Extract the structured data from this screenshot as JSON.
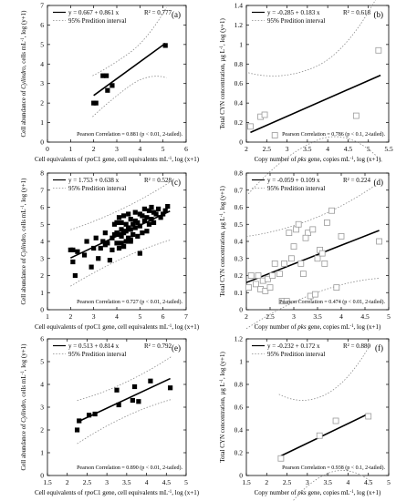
{
  "colors": {
    "axis": "#000000",
    "fit_line": "#000000",
    "interval": "#8a8a8a",
    "filled_marker": "#000000",
    "open_marker": "#9a9a9a"
  },
  "chart_data": [
    {
      "panel": "(a)",
      "type": "scatter",
      "marker": "filled-square",
      "xlabel_parts": [
        "Cell equivalents of ",
        "rpo",
        "C1 gene, cell equivalents mL",
        "-1",
        ", log (x+1)"
      ],
      "ylabel_parts": [
        "Cell abundance of ",
        "Cylindro",
        ", cells mL",
        "-1",
        ", log (y+1)"
      ],
      "xlim": [
        0,
        6
      ],
      "ylim": [
        0,
        7
      ],
      "xticks": [
        "0",
        "1",
        "2",
        "3",
        "4",
        "5",
        "6"
      ],
      "yticks": [
        "0",
        "1",
        "2",
        "3",
        "4",
        "5",
        "6",
        "7"
      ],
      "legend": {
        "equation": "y = 0.667 + 0.861 x",
        "r2": "R² = 0.777",
        "interval": "95% Predition interval"
      },
      "annotation": "Pearson Correlation = 0.881 (p < 0.01, 2-tailed).",
      "fit": {
        "intercept": 0.667,
        "slope": 0.861,
        "x_range": [
          2.0,
          5.1
        ]
      },
      "interval": {
        "x_range": [
          1.95,
          5.15
        ],
        "half_width": [
          1.05,
          0.85,
          1.8
        ]
      },
      "x": [
        2.0,
        2.1,
        2.4,
        2.55,
        2.6,
        2.8,
        5.1
      ],
      "y": [
        2.0,
        2.0,
        3.4,
        3.4,
        2.65,
        2.9,
        4.95
      ]
    },
    {
      "panel": "(b)",
      "type": "scatter",
      "marker": "open-square",
      "xlabel_parts": [
        "Copy number of ",
        "pks",
        " gene, copies mL",
        "-1",
        ", log (x+1)"
      ],
      "ylabel_parts": [
        "Total CYN concentration, µg L",
        "-1",
        ", log (y+1)"
      ],
      "xlim": [
        2,
        5.5
      ],
      "ylim": [
        0,
        1.4
      ],
      "xticks": [
        "2",
        "2.5",
        "3",
        "3.5",
        "4",
        "4.5",
        "5",
        "5.5"
      ],
      "yticks": [
        "0",
        "0.2",
        "0.4",
        "0.6",
        "0.8",
        "1",
        "1.2",
        "1.4"
      ],
      "legend": {
        "equation": "y = -0.285 + 0.183 x",
        "r2": "R² = 0.618",
        "interval": "95% Predition interval"
      },
      "annotation": "Pearson Correlation = 0.786 (p < 0.1, 2-tailed).",
      "fit": {
        "intercept": -0.285,
        "slope": 0.183,
        "x_range": [
          2.1,
          5.3
        ]
      },
      "interval": {
        "x_range": [
          2.05,
          5.35
        ],
        "half_width": [
          0.62,
          0.38,
          0.9
        ]
      },
      "x": [
        2.1,
        2.35,
        2.45,
        2.7,
        4.7,
        5.25
      ],
      "y": [
        0.16,
        0.26,
        0.28,
        0.07,
        0.27,
        0.94
      ]
    },
    {
      "panel": "(c)",
      "type": "scatter",
      "marker": "filled-square",
      "xlabel_parts": [
        "Cell equivalents of ",
        "rpo",
        "C1 gene, cell equivalents mL",
        "-1",
        ", log (x+1)"
      ],
      "ylabel_parts": [
        "Cell abundance of ",
        "Cylindro",
        ", cells mL",
        "-1",
        ", log (y+1)"
      ],
      "xlim": [
        1,
        7
      ],
      "ylim": [
        0,
        8
      ],
      "xticks": [
        "1",
        "2",
        "3",
        "4",
        "5",
        "6",
        "7"
      ],
      "yticks": [
        "0",
        "1",
        "2",
        "3",
        "4",
        "5",
        "6",
        "7",
        "8"
      ],
      "legend": {
        "equation": "y = 1.753 + 0.638 x",
        "r2": "R² = 0.528",
        "interval": "95% Predition interval"
      },
      "annotation": "Pearson Correlation = 0.727 (p < 0.01, 2-tailed).",
      "fit": {
        "intercept": 1.753,
        "slope": 0.638,
        "x_range": [
          2.0,
          6.3
        ]
      },
      "interval": {
        "x_range": [
          2.0,
          6.3
        ],
        "half_width": [
          1.65,
          1.45,
          1.7
        ]
      },
      "x": [
        2.0,
        2.1,
        2.1,
        2.2,
        2.6,
        2.7,
        2.9,
        3.0,
        3.1,
        3.2,
        3.3,
        3.4,
        3.5,
        3.6,
        3.7,
        3.8,
        3.9,
        3.9,
        4.0,
        4.0,
        4.0,
        4.1,
        4.1,
        4.1,
        4.2,
        4.2,
        4.2,
        4.3,
        4.3,
        4.3,
        4.4,
        4.4,
        4.4,
        4.5,
        4.5,
        4.5,
        4.6,
        4.6,
        4.6,
        4.7,
        4.7,
        4.8,
        4.8,
        4.8,
        4.9,
        4.9,
        5.0,
        5.0,
        5.0,
        5.1,
        5.1,
        5.2,
        5.2,
        5.3,
        5.3,
        5.4,
        5.4,
        5.5,
        5.5,
        5.6,
        5.6,
        5.7,
        5.8,
        5.9,
        6.0,
        6.1,
        6.2,
        2.3,
        3.5,
        3.8,
        4.2,
        4.6
      ],
      "y": [
        3.5,
        2.8,
        3.5,
        2.0,
        3.2,
        4.0,
        2.5,
        3.6,
        4.2,
        3.0,
        3.6,
        4.0,
        4.5,
        3.9,
        2.9,
        3.5,
        4.4,
        5.0,
        4.5,
        3.9,
        5.1,
        4.4,
        3.6,
        5.4,
        4.7,
        3.9,
        5.1,
        4.5,
        3.7,
        5.5,
        4.6,
        4.0,
        5.0,
        4.8,
        5.6,
        4.2,
        4.7,
        5.3,
        4.1,
        5.0,
        4.4,
        5.7,
        4.8,
        5.2,
        4.3,
        5.1,
        4.9,
        5.6,
        3.3,
        5.5,
        4.5,
        5.9,
        5.2,
        5.4,
        4.6,
        5.8,
        5.0,
        5.3,
        6.0,
        5.1,
        5.7,
        5.6,
        5.9,
        5.4,
        5.6,
        5.8,
        6.05,
        3.4,
        3.8,
        4.2,
        4.3,
        4.0
      ]
    },
    {
      "panel": "(d)",
      "type": "scatter",
      "marker": "open-square",
      "xlabel_parts": [
        "Copy number of ",
        "pks",
        " gene, copies mL",
        "-1",
        ", log (x+1)"
      ],
      "ylabel_parts": [
        "Total CYN concentration, µg L",
        "-1",
        ", log (y+1)"
      ],
      "xlim": [
        2,
        5
      ],
      "ylim": [
        0,
        0.8
      ],
      "xticks": [
        "2",
        "2.5",
        "3",
        "3.5",
        "4",
        "4.5",
        "5"
      ],
      "yticks": [
        "0",
        "0.1",
        "0.2",
        "0.3",
        "0.4",
        "0.5",
        "0.6",
        "0.7",
        "0.8"
      ],
      "legend": {
        "equation": "y = -0.059 + 0.109 x",
        "r2": "R² = 0.224",
        "interval": "95% Predition interval"
      },
      "annotation": "Pearson Correlation = 0.474 (p < 0.01, 2-tailed).",
      "fit": {
        "intercept": -0.059,
        "slope": 0.109,
        "x_range": [
          2.0,
          4.8
        ]
      },
      "interval": {
        "x_range": [
          2.0,
          4.8
        ],
        "half_width": [
          0.27,
          0.22,
          0.28
        ]
      },
      "x": [
        2.05,
        2.1,
        2.2,
        2.25,
        2.3,
        2.35,
        2.4,
        2.45,
        2.5,
        2.55,
        2.6,
        2.7,
        2.75,
        2.8,
        2.85,
        2.9,
        2.95,
        3.0,
        3.05,
        3.1,
        3.15,
        3.2,
        3.3,
        3.35,
        3.4,
        3.45,
        3.5,
        3.55,
        3.6,
        3.65,
        3.7,
        3.8,
        3.9,
        4.0,
        4.8,
        3.25
      ],
      "y": [
        0.13,
        0.2,
        0.15,
        0.2,
        0.12,
        0.17,
        0.11,
        0.18,
        0.13,
        0.2,
        0.27,
        0.21,
        0.05,
        0.27,
        0.05,
        0.45,
        0.3,
        0.37,
        0.47,
        0.5,
        0.27,
        0.21,
        0.45,
        0.08,
        0.47,
        0.09,
        0.3,
        0.35,
        0.33,
        0.27,
        0.51,
        0.58,
        0.13,
        0.43,
        0.4,
        0.42
      ]
    },
    {
      "panel": "(e)",
      "type": "scatter",
      "marker": "filled-square",
      "xlabel_parts": [
        "Cell equivalents of ",
        "rpo",
        "C1 gene, cell equivalents mL",
        "-1",
        ", log (x+1)"
      ],
      "ylabel_parts": [
        "Cell abundance of ",
        "Cylindro",
        ", cells mL",
        "-1",
        ", log (y+1)"
      ],
      "xlim": [
        1.5,
        5
      ],
      "ylim": [
        0,
        6
      ],
      "xticks": [
        "1.5",
        "2",
        "2.5",
        "3",
        "3.5",
        "4",
        "4.5",
        "5"
      ],
      "yticks": [
        "0",
        "1",
        "2",
        "3",
        "4",
        "5",
        "6"
      ],
      "legend": {
        "equation": "y = 0.513 + 0.814 x",
        "r2": "R² = 0.792",
        "interval": "95% Predition interval"
      },
      "annotation": "Pearson Correlation = 0.890 (p < 0.01, 2-tailed).",
      "fit": {
        "intercept": 0.513,
        "slope": 0.814,
        "x_range": [
          2.3,
          4.6
        ]
      },
      "interval": {
        "x_range": [
          2.25,
          4.65
        ],
        "half_width": [
          0.95,
          0.75,
          0.95
        ]
      },
      "x": [
        2.25,
        2.3,
        2.55,
        2.7,
        3.25,
        3.3,
        3.65,
        3.7,
        3.8,
        4.1,
        4.6
      ],
      "y": [
        2.0,
        2.4,
        2.65,
        2.7,
        3.75,
        3.1,
        3.3,
        3.9,
        3.25,
        4.15,
        3.85
      ]
    },
    {
      "panel": "(f)",
      "type": "scatter",
      "marker": "open-square",
      "xlabel_parts": [
        "Copy number of ",
        "pks",
        " gene, copies mL",
        "-1",
        ", log (x+1)"
      ],
      "ylabel_parts": [
        "Total CYN concentration, µg L",
        "-1",
        ", log (y+1)"
      ],
      "xlim": [
        1.5,
        5
      ],
      "ylim": [
        0,
        1.2
      ],
      "xticks": [
        "1.5",
        "2",
        "2.5",
        "3",
        "3.5",
        "4",
        "4.5",
        "5"
      ],
      "yticks": [
        "0",
        "0.2",
        "0.4",
        "0.6",
        "0.8",
        "1",
        "1.2"
      ],
      "legend": {
        "equation": "y = -0.232 + 0.172 x",
        "r2": "R² = 0.880",
        "interval": "95% Predition interval"
      },
      "annotation": "Pearson Correlation = 0.938 (p < 0.1, 2-tailed).",
      "fit": {
        "intercept": -0.232,
        "slope": 0.172,
        "x_range": [
          2.35,
          4.5
        ]
      },
      "interval": {
        "x_range": [
          2.3,
          4.55
        ],
        "half_width": [
          0.55,
          0.35,
          0.6
        ]
      },
      "x": [
        2.35,
        3.3,
        3.7,
        4.5
      ],
      "y": [
        0.15,
        0.35,
        0.48,
        0.52
      ]
    }
  ]
}
